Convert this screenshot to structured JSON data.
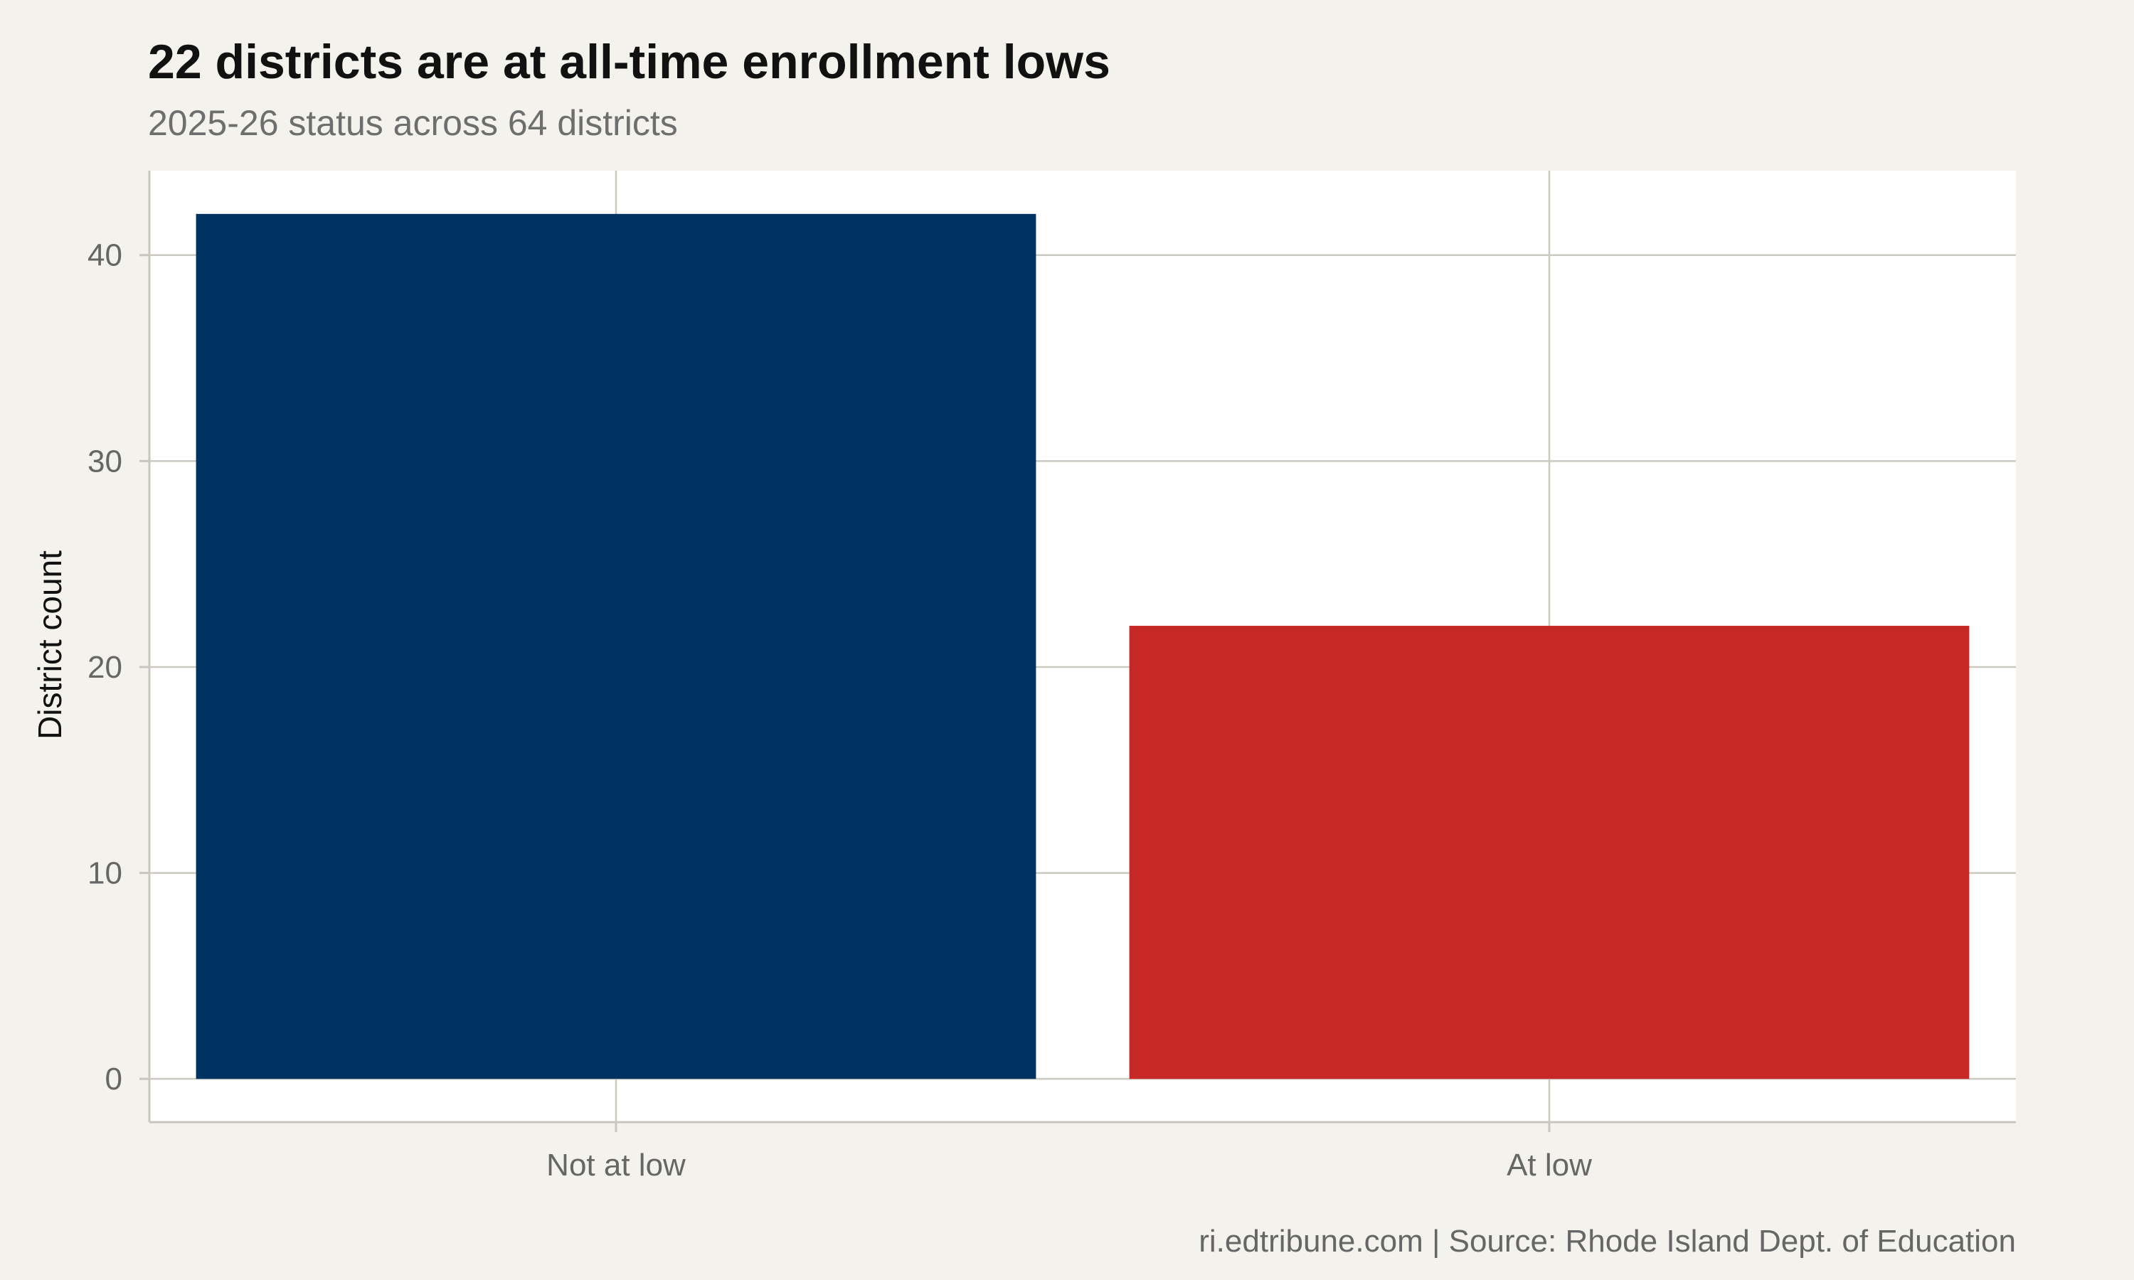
{
  "chart_data": {
    "type": "bar",
    "title": "22 districts are at all-time enrollment lows",
    "subtitle": "2025-26 status across 64 districts",
    "xlabel": "",
    "ylabel": "District count",
    "categories": [
      "Not at low",
      "At low"
    ],
    "values": [
      42,
      22
    ],
    "bar_colors": [
      "#003262",
      "#c62828"
    ],
    "ylim": [
      -2.1,
      44.1
    ],
    "y_ticks": [
      0,
      10,
      20,
      30,
      40
    ],
    "y_tick_labels": [
      "0",
      "10",
      "20",
      "30",
      "40"
    ],
    "grid": true,
    "legend": "none",
    "caption": "ri.edtribune.com | Source: Rhode Island Dept. of Education"
  },
  "colors": {
    "page_background": "#f4f2ed",
    "panel_background": "#ffffff",
    "grid": "#cccac0",
    "axis_line": "#c8c6bd"
  }
}
